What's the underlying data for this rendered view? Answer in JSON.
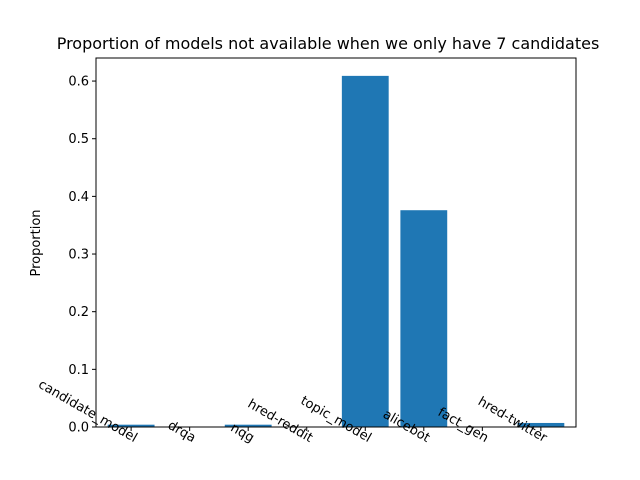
{
  "chart_data": {
    "type": "bar",
    "title": "Proportion of models not available when we only have 7 candidates",
    "xlabel": "",
    "ylabel": "Proportion",
    "categories": [
      "candidate_model",
      "drqa",
      "nqg",
      "hred-reddit",
      "topic_model",
      "alicebot",
      "fact_gen",
      "hred-twitter"
    ],
    "values": [
      0.004,
      0.0,
      0.004,
      0.0,
      0.609,
      0.376,
      0.0,
      0.007
    ],
    "ylim": [
      0,
      0.64
    ],
    "yticks": [
      0.0,
      0.1,
      0.2,
      0.3,
      0.4,
      0.5,
      0.6
    ],
    "ytick_labels": [
      "0.0",
      "0.1",
      "0.2",
      "0.3",
      "0.4",
      "0.5",
      "0.6"
    ],
    "bar_color": "#1f77b4",
    "grid": false,
    "legend": "none"
  }
}
